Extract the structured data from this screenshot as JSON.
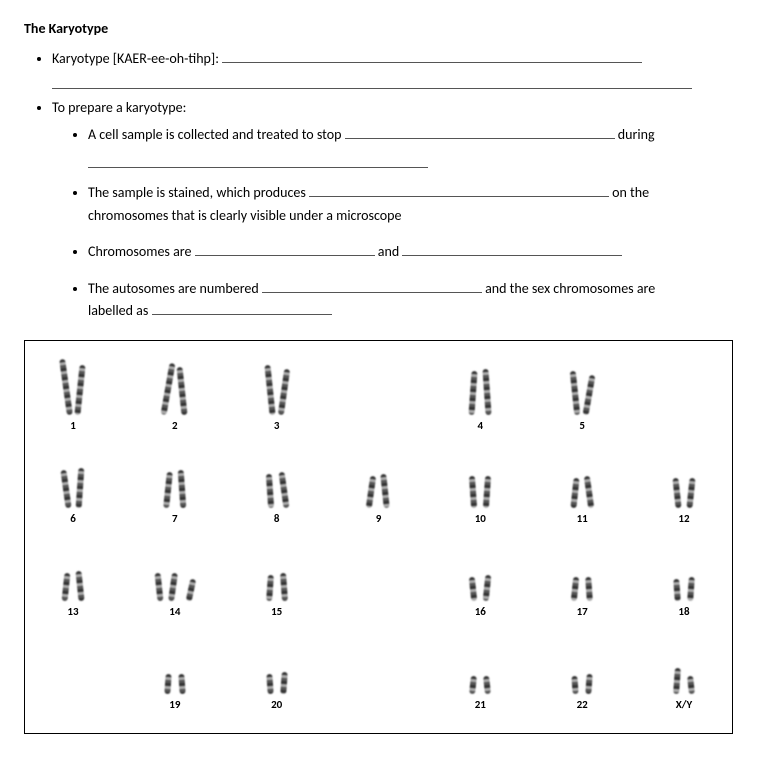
{
  "title": "The Karyotype",
  "bullets": {
    "b1_prefix": "Karyotype [KAER-ee-oh-tihp]:",
    "b2": "To prepare a karyotype:",
    "sub1_a": "A cell sample is collected and treated to stop",
    "sub1_b": "during",
    "sub2_a": "The sample is stained, which produces",
    "sub2_b": "on the",
    "sub2_c": "chromosomes that is clearly visible under a microscope",
    "sub3_a": "Chromosomes are",
    "sub3_b": "and",
    "sub4_a": "The autosomes are numbered",
    "sub4_b": "and the sex chromosomes are",
    "sub4_c": "labelled as"
  },
  "karyotype": {
    "rows": [
      {
        "cells": [
          {
            "n": "1",
            "h1": 56,
            "h2": 50,
            "t1": -8,
            "t2": 6
          },
          {
            "n": "2",
            "h1": 52,
            "h2": 48,
            "t1": 10,
            "t2": -6
          },
          {
            "n": "3",
            "h1": 50,
            "h2": 46,
            "t1": -6,
            "t2": 8
          },
          null,
          {
            "n": "4",
            "h1": 44,
            "h2": 46,
            "t1": 4,
            "t2": -4
          },
          {
            "n": "5",
            "h1": 44,
            "h2": 40,
            "t1": -6,
            "t2": 10
          },
          null
        ]
      },
      {
        "cells": [
          {
            "n": "6",
            "h1": 38,
            "h2": 40,
            "t1": -8,
            "t2": 4
          },
          {
            "n": "7",
            "h1": 36,
            "h2": 38,
            "t1": 6,
            "t2": -4
          },
          {
            "n": "8",
            "h1": 34,
            "h2": 36,
            "t1": -4,
            "t2": -8
          },
          {
            "n": "9",
            "h1": 32,
            "h2": 34,
            "t1": 8,
            "t2": -6
          },
          {
            "n": "10",
            "h1": 32,
            "h2": 32,
            "t1": -4,
            "t2": 4
          },
          {
            "n": "11",
            "h1": 30,
            "h2": 32,
            "t1": 6,
            "t2": -8
          },
          {
            "n": "12",
            "h1": 30,
            "h2": 30,
            "t1": -6,
            "t2": 6
          }
        ]
      },
      {
        "cells": [
          {
            "n": "13",
            "h1": 28,
            "h2": 30,
            "t1": 6,
            "t2": -6
          },
          {
            "n": "14",
            "h1": 28,
            "h2": 28,
            "t1": -6,
            "t2": 8,
            "extra": true
          },
          {
            "n": "15",
            "h1": 26,
            "h2": 28,
            "t1": 4,
            "t2": -4
          },
          null,
          {
            "n": "16",
            "h1": 24,
            "h2": 26,
            "t1": -6,
            "t2": 6
          },
          {
            "n": "17",
            "h1": 24,
            "h2": 24,
            "t1": 6,
            "t2": -4
          },
          {
            "n": "18",
            "h1": 22,
            "h2": 24,
            "t1": -4,
            "t2": 4
          }
        ]
      },
      {
        "cells": [
          null,
          {
            "n": "19",
            "h1": 20,
            "h2": 20,
            "t1": 4,
            "t2": -4
          },
          {
            "n": "20",
            "h1": 20,
            "h2": 22,
            "t1": -4,
            "t2": 4
          },
          null,
          {
            "n": "21",
            "h1": 18,
            "h2": 18,
            "t1": 6,
            "t2": -6
          },
          {
            "n": "22",
            "h1": 18,
            "h2": 20,
            "t1": -4,
            "t2": 4
          },
          {
            "n": "X/Y",
            "h1": 26,
            "h2": 18,
            "t1": 4,
            "t2": -6
          }
        ]
      }
    ],
    "colors": {
      "stroke": "#000000",
      "chrom_dark": "#333333",
      "chrom_mid": "#777777",
      "chrom_light": "#bbbbbb"
    },
    "label_fontsize": 11
  }
}
